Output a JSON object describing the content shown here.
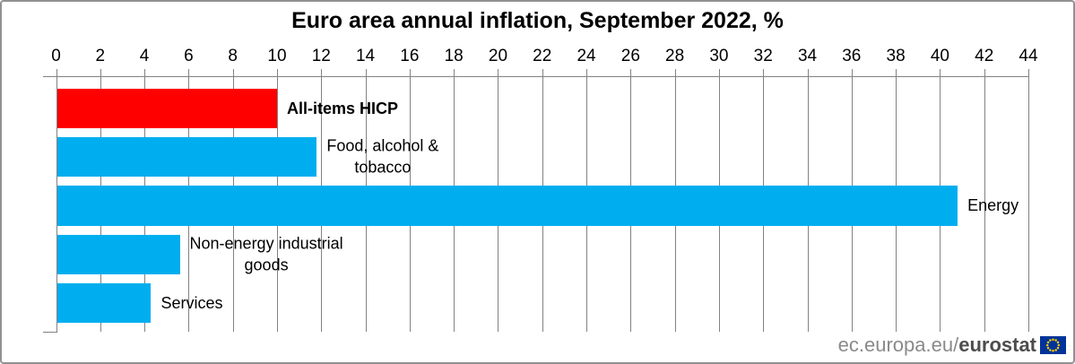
{
  "chart_data": {
    "type": "bar",
    "orientation": "horizontal",
    "title": "Euro area annual inflation, September 2022, %",
    "categories": [
      "All-items HICP",
      "Food, alcohol & tobacco",
      "Energy",
      "Non-energy industrial goods",
      "Services"
    ],
    "values": [
      10.0,
      11.8,
      40.8,
      5.6,
      4.3
    ],
    "bar_colors": [
      "#fe0000",
      "#00aeef",
      "#00aeef",
      "#00aeef",
      "#00aeef"
    ],
    "label_lines": [
      [
        "All-items HICP"
      ],
      [
        "Food, alcohol &",
        "tobacco"
      ],
      [
        "Energy"
      ],
      [
        "Non-energy industrial",
        "goods"
      ],
      [
        "Services"
      ]
    ],
    "label_bold": [
      true,
      false,
      false,
      false,
      false
    ],
    "xlabel": "",
    "ylabel": "",
    "xlim": [
      0,
      44
    ],
    "x_ticks": [
      0,
      2,
      4,
      6,
      8,
      10,
      12,
      14,
      16,
      18,
      20,
      22,
      24,
      26,
      28,
      30,
      32,
      34,
      36,
      38,
      40,
      42,
      44
    ],
    "axis_position": "top",
    "grid": true,
    "legend": "none",
    "colors": {
      "highlight_bar": "#fe0000",
      "default_bar": "#00aeef",
      "gridline": "#828282",
      "text": "#000000"
    }
  },
  "footer": {
    "site_prefix": "ec.europa.eu/",
    "site_bold": "eurostat",
    "flag_icon": "eu-flag-icon",
    "prefix_color": "#8a8a8a",
    "bold_color": "#4d4d4d",
    "flag_blue": "#003399",
    "flag_star": "#ffcc00"
  }
}
